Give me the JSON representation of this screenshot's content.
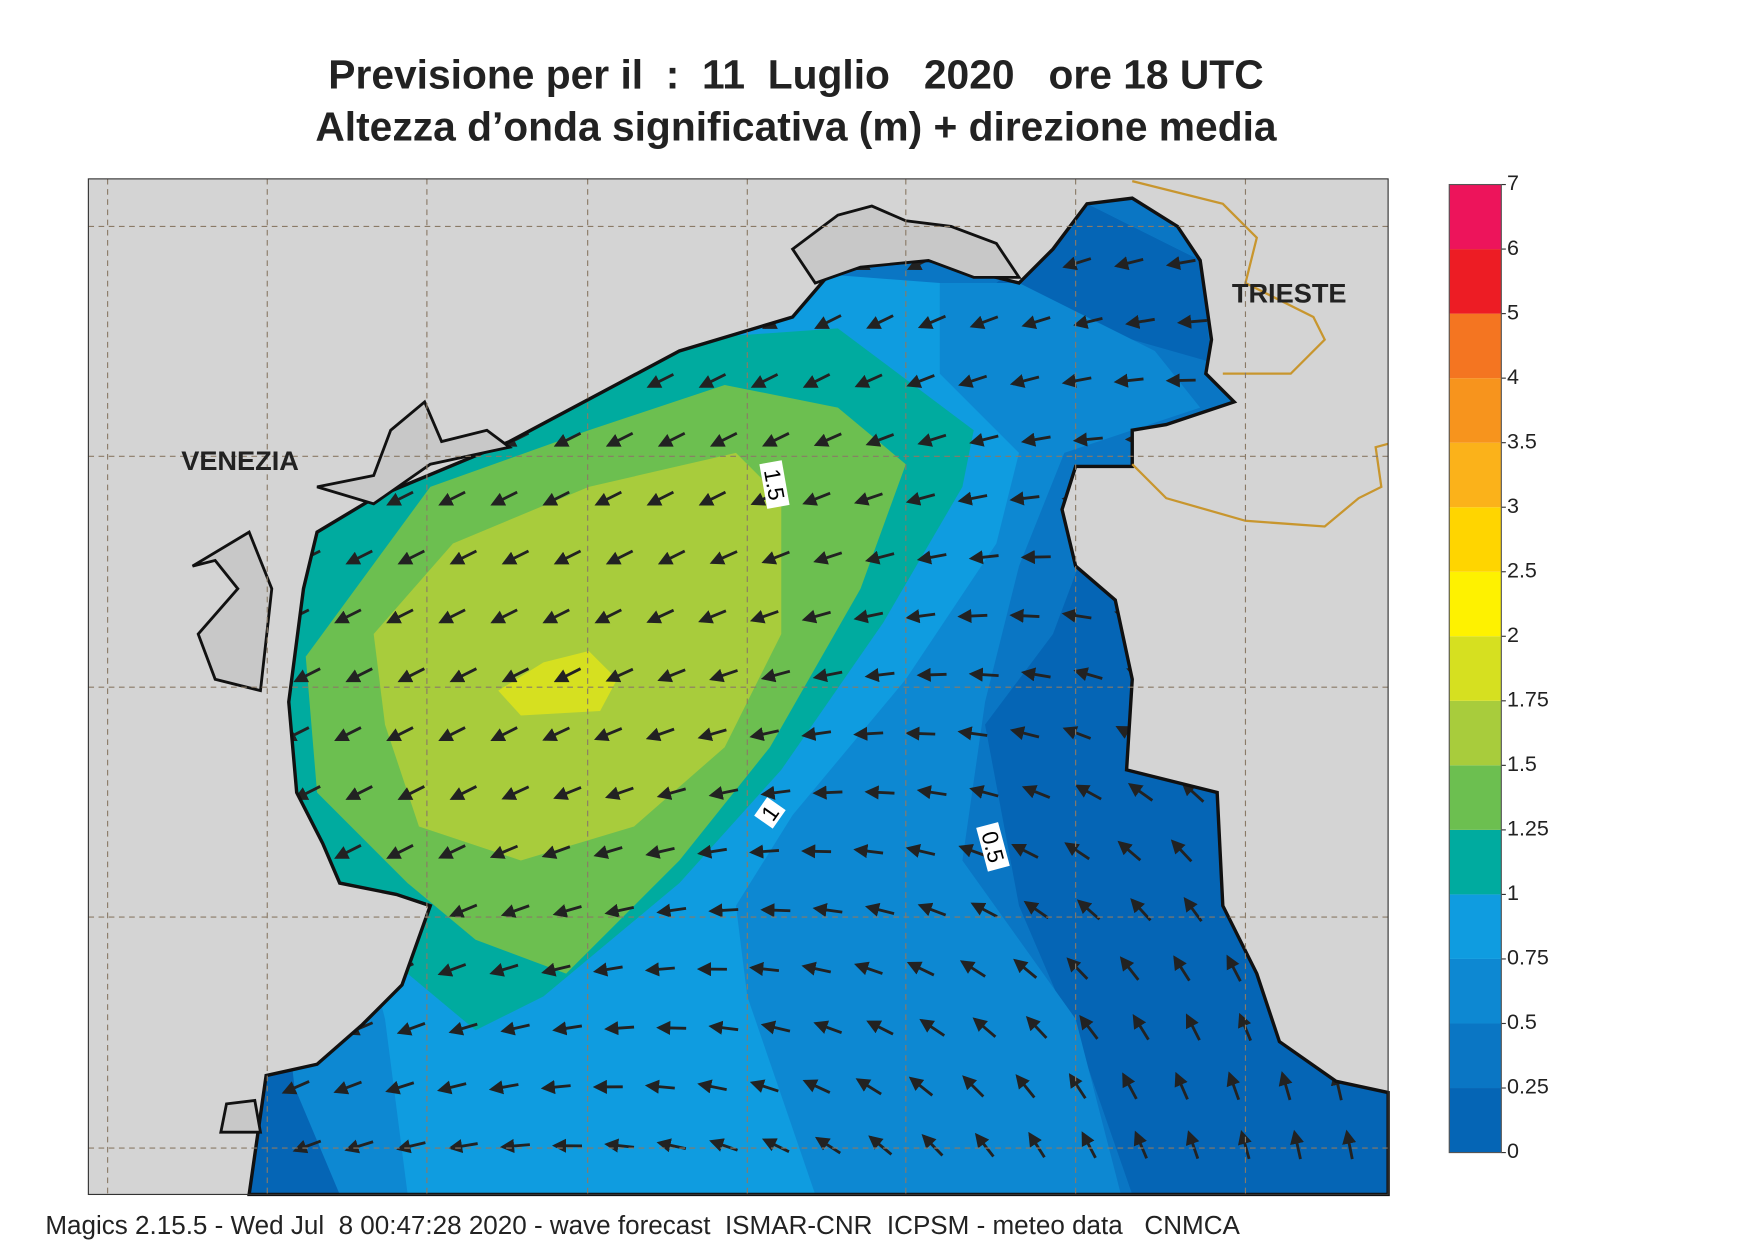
{
  "title": [
    "Previsione per il  :  11  Luglio   2020   ore 18 UTC",
    "Altezza d’onda significativa (m) + direzione media"
  ],
  "map": {
    "places": [
      "VENEZIA",
      "TRIESTE"
    ],
    "contour_labels": [
      "1.5",
      "1",
      "0.5"
    ]
  },
  "colorbar": {
    "ticks": [
      0,
      0.25,
      0.5,
      0.75,
      1,
      1.25,
      1.5,
      1.75,
      2,
      2.5,
      3,
      3.5,
      4,
      5,
      6,
      7
    ],
    "colors": [
      "#0565b5",
      "#0a76c4",
      "#0d88d2",
      "#0f9ce0",
      "#00ab9f",
      "#6cbf50",
      "#a8cc3c",
      "#d6e020",
      "#fef200",
      "#ffd500",
      "#fbb21a",
      "#f7941d",
      "#f47521",
      "#ed1c24",
      "#ed145b"
    ]
  },
  "footer": "Magics 2.15.5 - Wed Jul  8 00:47:28 2020 - wave forecast  ISMAR-CNR  ICPSM - meteo data   CNMCA"
}
